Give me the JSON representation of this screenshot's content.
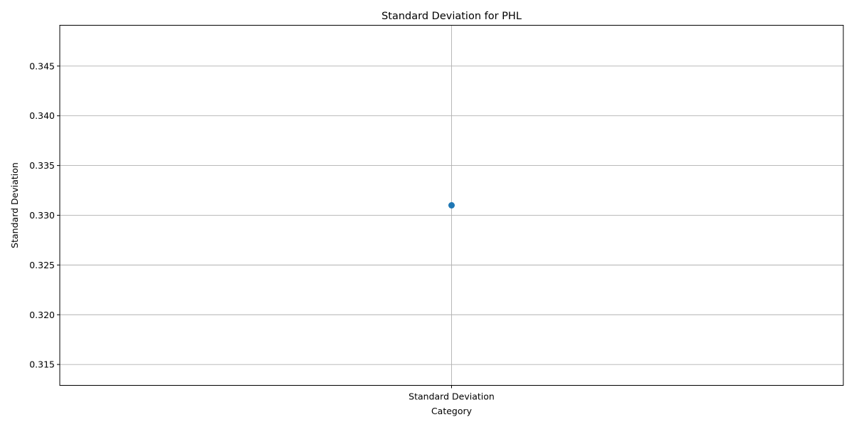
{
  "chart_data": {
    "type": "scatter",
    "title": "Standard Deviation for PHL",
    "xlabel": "Category",
    "ylabel": "Standard Deviation",
    "categories": [
      "Standard Deviation"
    ],
    "series": [
      {
        "values": [
          0.331
        ],
        "color": "#1f77b4"
      }
    ],
    "ylim": [
      0.3129,
      0.3491
    ],
    "yticks": [
      0.315,
      0.32,
      0.325,
      0.33,
      0.335,
      0.34,
      0.345
    ],
    "ytick_labels": [
      "0.315",
      "0.320",
      "0.325",
      "0.330",
      "0.335",
      "0.340",
      "0.345"
    ],
    "grid": true,
    "legend": "none"
  }
}
